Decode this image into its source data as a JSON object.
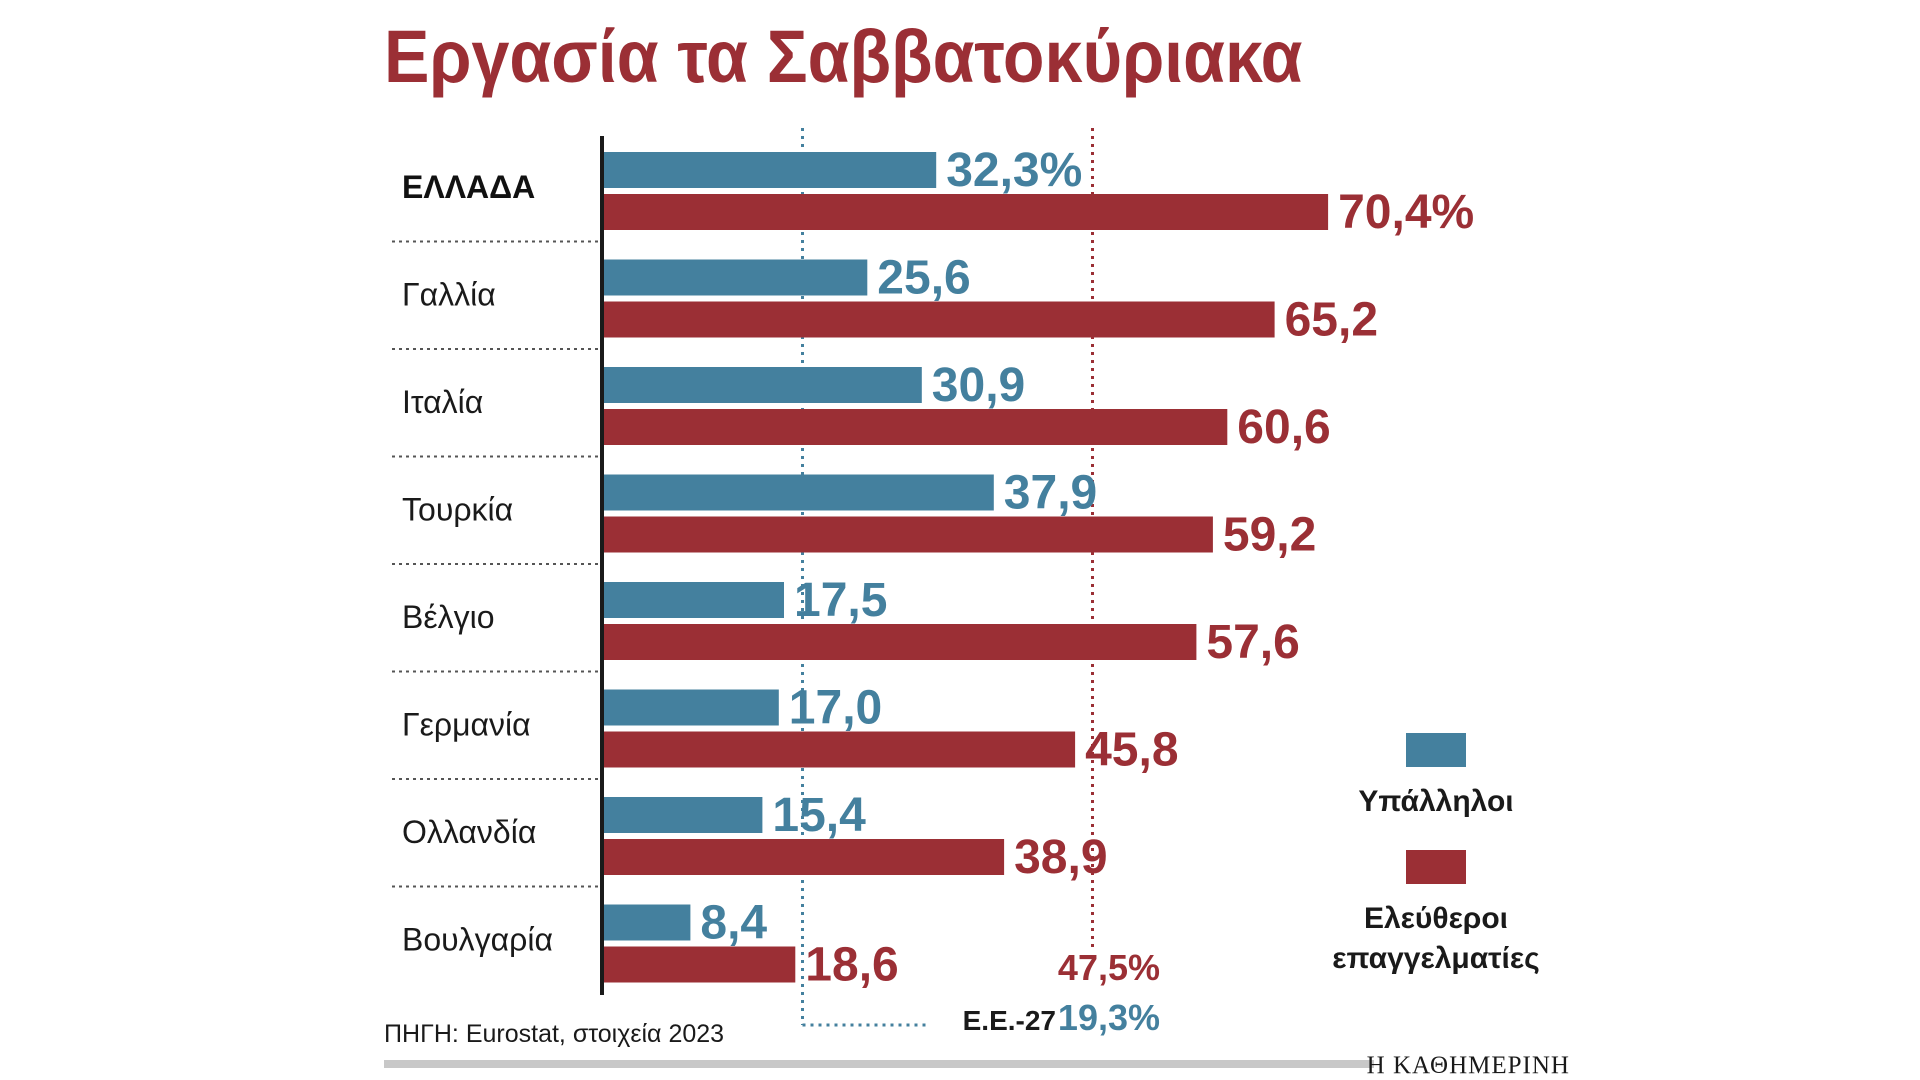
{
  "title": "Εργασία τα Σαββατοκύριακα",
  "colors": {
    "employees": "#44809e",
    "self_employed": "#9b2f35",
    "title": "#9b2f35"
  },
  "chart_data": {
    "type": "bar",
    "orientation": "horizontal",
    "categories": [
      "ΕΛΛΑΔΑ",
      "Γαλλία",
      "Ιταλία",
      "Τουρκία",
      "Βέλγιο",
      "Γερμανία",
      "Ολλανδία",
      "Βουλγαρία"
    ],
    "series": [
      {
        "name": "Υπάλληλοι",
        "values": [
          32.3,
          25.6,
          30.9,
          37.9,
          17.5,
          17.0,
          15.4,
          8.4
        ],
        "labels": [
          "32,3%",
          "25,6",
          "30,9",
          "37,9",
          "17,5",
          "17,0",
          "15,4",
          "8,4"
        ]
      },
      {
        "name": "Ελεύθεροι επαγγελματίες",
        "values": [
          70.4,
          65.2,
          60.6,
          59.2,
          57.6,
          45.8,
          38.9,
          18.6
        ],
        "labels": [
          "70,4%",
          "65,2",
          "60,6",
          "59,2",
          "57,6",
          "45,8",
          "38,9",
          "18,6"
        ]
      }
    ],
    "reference_lines": [
      {
        "series": "Υπάλληλοι",
        "value": 19.3,
        "label": "19,3%"
      },
      {
        "series": "Ελεύθεροι επαγγελματίες",
        "value": 47.5,
        "label": "47,5%"
      }
    ],
    "reference_caption": "Ε.Ε.-27",
    "legend": {
      "position": "right",
      "items": [
        {
          "label_lines": [
            "Υπάλληλοι"
          ]
        },
        {
          "label_lines": [
            "Ελεύθεροι",
            "επαγγελματίες"
          ]
        }
      ]
    },
    "xlim": [
      0,
      100
    ],
    "grid": false
  },
  "source": "ΠΗΓΗ: Eurostat, στοιχεία 2023",
  "brand": "Η ΚΑΘΗΜΕΡΙΝΗ"
}
